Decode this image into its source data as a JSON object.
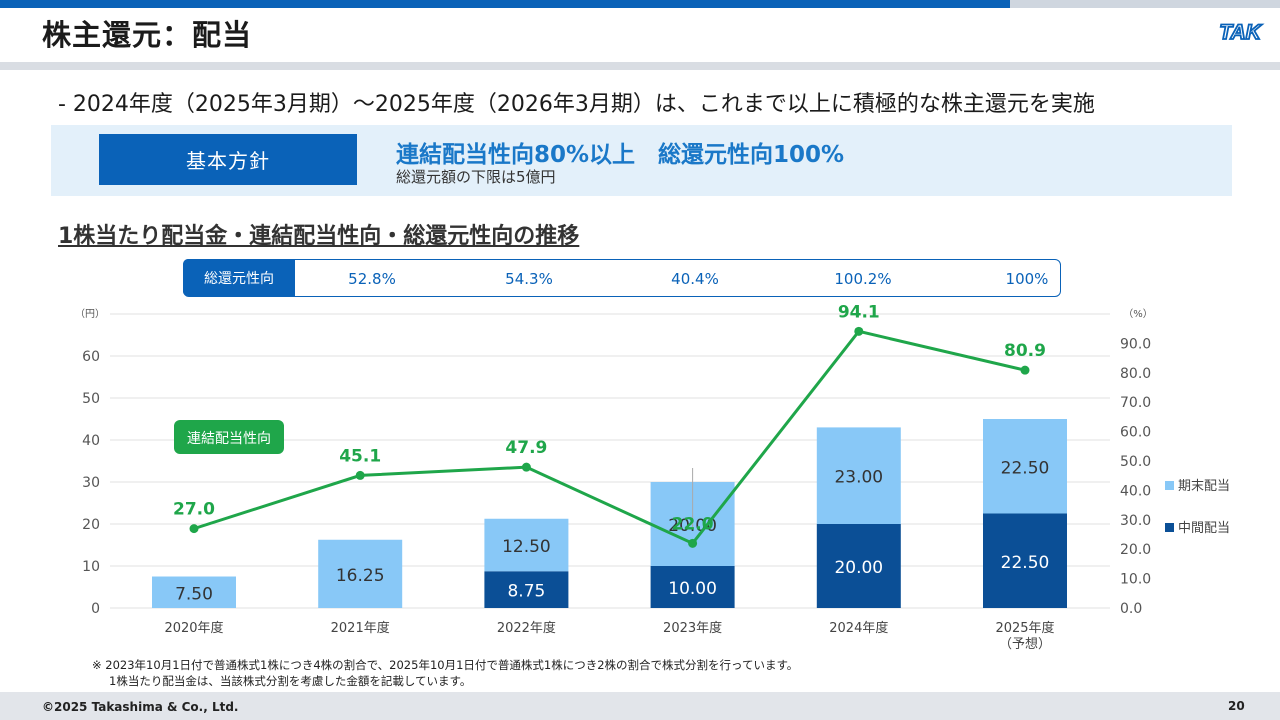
{
  "header": {
    "title": "株主還元：配当",
    "logo_text": "TAK"
  },
  "lead": "- 2024年度（2025年3月期）～2025年度（2026年3月期）は、これまで以上に積極的な株主還元を実施",
  "policy": {
    "label": "基本方針",
    "main": "連結配当性向80%以上　総還元性向100%",
    "sub": "総還元額の下限は5億円"
  },
  "section_title": "1株当たり配当金・連結配当性向・総還元性向の推移",
  "total_return": {
    "label": "総還元性向",
    "values": [
      "52.8%",
      "54.3%",
      "40.4%",
      "100.2%",
      "100%"
    ]
  },
  "chart_data": {
    "type": "bar",
    "categories": [
      "2020年度",
      "2021年度",
      "2022年度",
      "2023年度",
      "2024年度",
      "2025年度（予想）"
    ],
    "category_lines": [
      [
        "2020年度"
      ],
      [
        "2021年度"
      ],
      [
        "2022年度"
      ],
      [
        "2023年度"
      ],
      [
        "2024年度"
      ],
      [
        "2025年度",
        "（予想）"
      ]
    ],
    "y_left": {
      "unit": "（円）",
      "ticks": [
        "0",
        "10",
        "20",
        "30",
        "40",
        "50",
        "60"
      ],
      "lim": [
        0,
        70
      ]
    },
    "y_right": {
      "unit": "（%）",
      "ticks": [
        "0.0",
        "10.0",
        "20.0",
        "30.0",
        "40.0",
        "50.0",
        "60.0",
        "70.0",
        "80.0",
        "90.0"
      ],
      "lim": [
        0,
        100
      ]
    },
    "series": [
      {
        "name": "中間配当",
        "kind": "bar",
        "axis": "left",
        "color": "#0b4f96",
        "values": [
          0,
          0,
          8.75,
          10.0,
          20.0,
          22.5
        ],
        "labels": [
          "",
          "",
          "8.75",
          "10.00",
          "20.00",
          "22.50"
        ]
      },
      {
        "name": "期末配当",
        "kind": "bar",
        "axis": "left",
        "color": "#88c8f7",
        "values": [
          7.5,
          16.25,
          12.5,
          20.0,
          23.0,
          22.5
        ],
        "labels": [
          "7.50",
          "16.25",
          "12.50",
          "20.00",
          "23.00",
          "22.50"
        ]
      },
      {
        "name": "連結配当性向",
        "kind": "line",
        "axis": "right",
        "color": "#1fa64a",
        "values": [
          27.0,
          45.1,
          47.9,
          22.0,
          94.1,
          80.9
        ],
        "labels": [
          "27.0",
          "45.1",
          "47.9",
          "22.0",
          "94.1",
          "80.9"
        ]
      }
    ],
    "line_badge": "連結配当性向",
    "legend": [
      "期末配当",
      "中間配当"
    ],
    "legend_position": "right"
  },
  "footnote": [
    "※ 2023年10月1日付で普通株式1株につき4株の割合で、2025年10月1日付で普通株式1株につき2株の割合で株式分割を行っています。",
    "1株当たり配当金は、当該株式分割を考慮した金額を記載しています。"
  ],
  "footer": {
    "copyright": "©2025 Takashima & Co., Ltd.",
    "page": "20"
  }
}
